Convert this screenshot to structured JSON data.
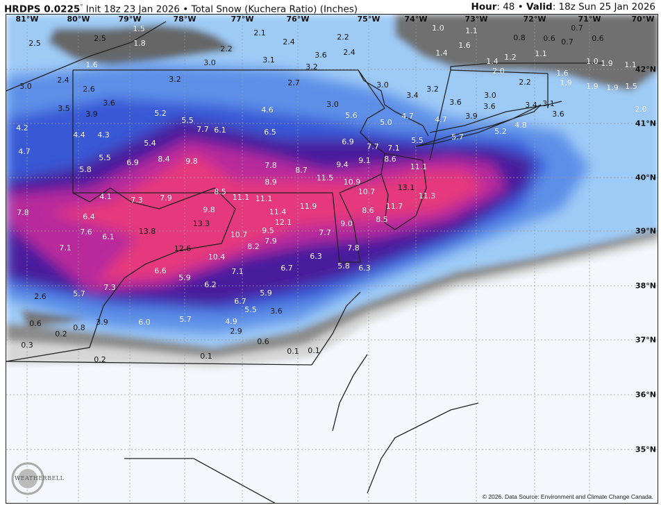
{
  "header": {
    "model": "HRDPS 0.0225",
    "degree": "°",
    "init": "Init 18z 23 Jan 2026",
    "separator": "•",
    "product": "Total Snow (Kuchera Ratio) (Inches)",
    "hour_label": "Hour",
    "hour_value": ": 48",
    "valid_label": "Valid",
    "valid_value": ": 18z Sun 25 Jan 2026"
  },
  "map": {
    "longitude_labels": [
      "81°W",
      "80°W",
      "79°W",
      "78°W",
      "77°W",
      "76°W",
      "75°W",
      "74°W",
      "73°W",
      "72°W",
      "71°W",
      "70°W"
    ],
    "latitude_labels": [
      "42°N",
      "41°N",
      "40°N",
      "39°N",
      "38°N",
      "37°N",
      "36°N",
      "35°N"
    ],
    "snow_totals": [
      "2.5",
      "1.5",
      "2.5",
      "1.8",
      "1.6",
      "2.2",
      "2.1",
      "2.4",
      "2.2",
      "2.4",
      "3.6",
      "3.2",
      "3.1",
      "3.0",
      "3.0",
      "2.4",
      "2.6",
      "3.2",
      "2.7",
      "3.0",
      "3.4",
      "3.2",
      "3.5",
      "3.6",
      "3.9",
      "3.0",
      "5.2",
      "5.5",
      "7.7",
      "6.1",
      "4.6",
      "5.6",
      "5.0",
      "4.7",
      "4.7",
      "4.2",
      "4.4",
      "4.3",
      "5.4",
      "4.7",
      "5.5",
      "5.8",
      "6.9",
      "8.4",
      "9.8",
      "6.5",
      "6.9",
      "7.7",
      "7.1",
      "8.6",
      "9.1",
      "7.8",
      "8.7",
      "9.4",
      "11.5",
      "10.9",
      "8.9",
      "11.1",
      "5.5",
      "5.7",
      "5.2",
      "4.8",
      "3.6",
      "3.0",
      "2.2",
      "3.9",
      "3.6",
      "3.4",
      "3.1",
      "3.6",
      "1.0",
      "1.1",
      "1.6",
      "1.4",
      "0.8",
      "0.6",
      "0.7",
      "0.7",
      "0.6",
      "1.1",
      "1.4",
      "1.2",
      "2.0",
      "1.6",
      "1.9",
      "1.9",
      "1.9",
      "1.5",
      "1.0",
      "1.9",
      "1.1",
      "2.0",
      "8.5",
      "11.1",
      "11.1",
      "11.9",
      "11.4",
      "12.1",
      "10.7",
      "13.1",
      "11.3",
      "11.7",
      "8.6",
      "8.5",
      "9.0",
      "7.7",
      "10.7",
      "9.5",
      "7.9",
      "8.2",
      "7.8",
      "6.3",
      "5.8",
      "6.3",
      "6.7",
      "10.4",
      "7.1",
      "6.2",
      "5.9",
      "6.7",
      "5.5",
      "4.9",
      "3.6",
      "2.9",
      "0.6",
      "0.1",
      "0.1",
      "4.1",
      "7.3",
      "7.9",
      "9.8",
      "13.3",
      "7.8",
      "6.4",
      "7.6",
      "6.1",
      "13.8",
      "7.1",
      "12.6",
      "6.6",
      "5.9",
      "7.3",
      "5.7",
      "2.6",
      "6.0",
      "5.7",
      "3.9",
      "0.6",
      "0.8",
      "0.2",
      "0.3",
      "0.2",
      "0.1"
    ],
    "colors": {
      "none": "#f5f7fd",
      "trace_light_grey": "#d6d6d6",
      "trace_grey": "#8c8c8c",
      "trace_dark_grey": "#666666",
      "light_blue": "#9ecbf6",
      "blue": "#5d8fe8",
      "deep_blue": "#3858d6",
      "purple": "#4a1a9e",
      "magenta": "#b8299c",
      "pink": "#e6387c"
    }
  },
  "logo": "WEATHERBELL",
  "footer": {
    "copyright": "© 2026. Data Source: Environment and Climate Change Canada."
  }
}
